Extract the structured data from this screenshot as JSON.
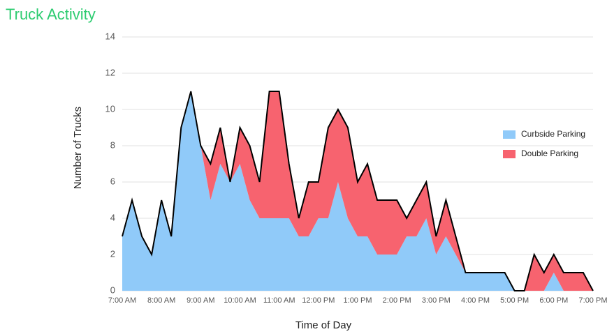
{
  "chart_data": {
    "type": "stacked_area",
    "title": "Truck Activity",
    "xlabel": "Time of Day",
    "ylabel": "Number of Trucks",
    "x": [
      7,
      7.25,
      7.5,
      7.75,
      8,
      8.25,
      8.5,
      8.75,
      9,
      9.25,
      9.5,
      9.75,
      10,
      10.25,
      10.5,
      10.75,
      11,
      11.25,
      11.5,
      11.75,
      12,
      12.25,
      12.5,
      12.75,
      13,
      13.25,
      13.5,
      13.75,
      14,
      14.25,
      14.5,
      14.75,
      15,
      15.25,
      15.5,
      15.75,
      16,
      16.25,
      16.5,
      16.75,
      17,
      17.25,
      17.5,
      17.75,
      18,
      18.25,
      18.5,
      18.75,
      19
    ],
    "series": [
      {
        "name": "Curbside Parking",
        "color": "#90caf9",
        "values": [
          3,
          5,
          3,
          2,
          5,
          3,
          9,
          11,
          8,
          5,
          7,
          6,
          7,
          5,
          4,
          4,
          4,
          4,
          3,
          3,
          4,
          4,
          6,
          4,
          3,
          3,
          2,
          2,
          2,
          3,
          3,
          4,
          2,
          3,
          2,
          1,
          1,
          1,
          1,
          1,
          0,
          0,
          0,
          0,
          1,
          0,
          0,
          0,
          0
        ]
      },
      {
        "name": "Double Parking",
        "color": "#f7636f",
        "values": [
          0,
          0,
          0,
          0,
          0,
          0,
          0,
          0,
          0,
          2,
          2,
          0,
          2,
          3,
          2,
          7,
          7,
          3,
          1,
          3,
          2,
          5,
          4,
          5,
          3,
          4,
          3,
          3,
          3,
          1,
          2,
          2,
          1,
          2,
          1,
          0,
          0,
          0,
          0,
          0,
          0,
          0,
          2,
          1,
          1,
          1,
          1,
          1,
          0
        ]
      }
    ],
    "xlim": [
      7,
      19
    ],
    "xticks": [
      {
        "value": 7,
        "label": "7:00 AM"
      },
      {
        "value": 8,
        "label": "8:00 AM"
      },
      {
        "value": 9,
        "label": "9:00 AM"
      },
      {
        "value": 10,
        "label": "10:00 AM"
      },
      {
        "value": 11,
        "label": "11:00 AM"
      },
      {
        "value": 12,
        "label": "12:00 PM"
      },
      {
        "value": 13,
        "label": "1:00 PM"
      },
      {
        "value": 14,
        "label": "2:00 PM"
      },
      {
        "value": 15,
        "label": "3:00 PM"
      },
      {
        "value": 16,
        "label": "4:00 PM"
      },
      {
        "value": 17,
        "label": "5:00 PM"
      },
      {
        "value": 18,
        "label": "6:00 PM"
      },
      {
        "value": 19,
        "label": "7:00 PM"
      }
    ],
    "ylim": [
      0,
      14
    ],
    "yticks": [
      0,
      2,
      4,
      6,
      8,
      10,
      12,
      14
    ],
    "grid": true,
    "legend": "right"
  }
}
